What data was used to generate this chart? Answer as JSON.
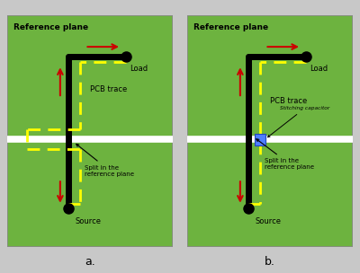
{
  "bg_color": "#6db33f",
  "border_color": "#888888",
  "white_color": "#ffffff",
  "black_color": "#000000",
  "red_color": "#cc0000",
  "yellow_color": "#ffff00",
  "blue_color": "#4f7fff",
  "title": "Reference plane",
  "label_a": "a.",
  "label_b": "b.",
  "figsize": [
    4.0,
    3.04
  ],
  "dpi": 100,
  "fig_bg": "#c8c8c8"
}
